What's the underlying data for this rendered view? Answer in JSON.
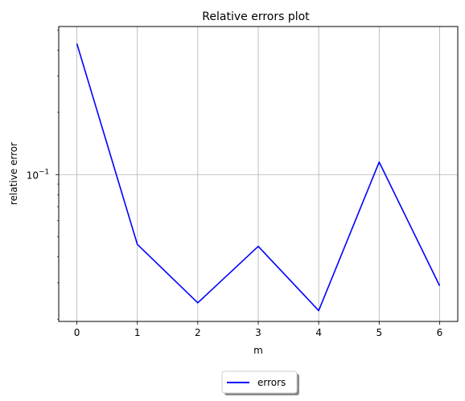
{
  "chart_data": {
    "type": "line",
    "title": "Relative errors plot",
    "xlabel": "m",
    "ylabel": "relative error",
    "x": [
      0,
      1,
      2,
      3,
      4,
      5,
      6
    ],
    "series": [
      {
        "name": "errors",
        "color": "#0000ff",
        "values": [
          0.43,
          0.046,
          0.024,
          0.045,
          0.022,
          0.115,
          0.029
        ]
      }
    ],
    "xlim": [
      -0.3,
      6.3
    ],
    "ylim": [
      0.0195,
      0.52
    ],
    "yscale": "log",
    "xticks": [
      "0",
      "1",
      "2",
      "3",
      "4",
      "5",
      "6"
    ],
    "yticks": [
      {
        "value": 0.1,
        "label_base": "10",
        "label_exp": "−1"
      }
    ],
    "grid": true,
    "legend": "bottom-center"
  }
}
